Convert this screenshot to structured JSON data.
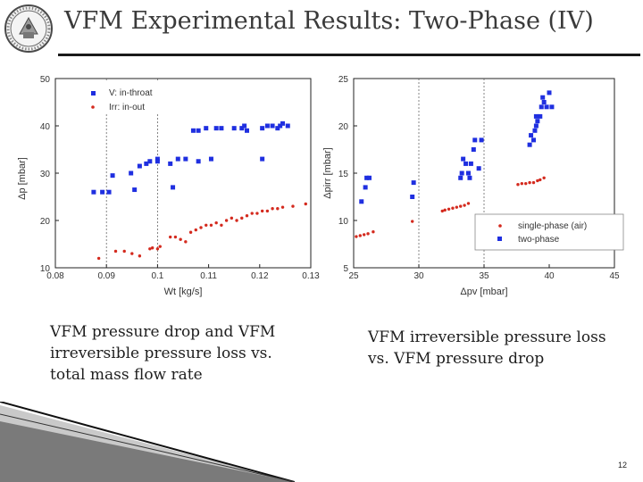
{
  "header": {
    "title": "VFM Experimental Results: Two-Phase (IV)"
  },
  "captions": {
    "left": "VFM pressure drop and VFM irreversible pressure loss vs. total mass flow rate",
    "right": "VFM irreversible pressure loss vs. VFM pressure drop"
  },
  "footer": {
    "page_number": "12"
  },
  "colors": {
    "blue_series": "#1f2fe0",
    "red_series": "#d42a1e",
    "frame": "#222222"
  },
  "chart_data": [
    {
      "type": "scatter",
      "title": "",
      "xlabel": "Wt [kg/s]",
      "ylabel": "Δp [mbar]",
      "xlim": [
        0.08,
        0.13
      ],
      "ylim": [
        10,
        50
      ],
      "xticks": [
        "0.08",
        "0.09",
        "0.1",
        "0.11",
        "0.12",
        "0.13"
      ],
      "yticks": [
        "10",
        "20",
        "30",
        "40",
        "50"
      ],
      "grid_x_dashed": [
        0.09,
        0.1
      ],
      "legend_position": "top-left",
      "series": [
        {
          "name": "V: in-throat",
          "marker": "square",
          "color": "#1f2fe0",
          "points": [
            [
              0.0875,
              26
            ],
            [
              0.0892,
              26
            ],
            [
              0.0905,
              26
            ],
            [
              0.0912,
              29.5
            ],
            [
              0.0948,
              30
            ],
            [
              0.0955,
              26.5
            ],
            [
              0.0965,
              31.5
            ],
            [
              0.0978,
              32
            ],
            [
              0.0985,
              32.5
            ],
            [
              0.1,
              33
            ],
            [
              0.1,
              32.5
            ],
            [
              0.1025,
              32
            ],
            [
              0.104,
              33
            ],
            [
              0.103,
              27
            ],
            [
              0.1055,
              33
            ],
            [
              0.107,
              39
            ],
            [
              0.108,
              39
            ],
            [
              0.108,
              32.5
            ],
            [
              0.1095,
              39.5
            ],
            [
              0.1105,
              33
            ],
            [
              0.1115,
              39.5
            ],
            [
              0.1125,
              39.5
            ],
            [
              0.115,
              39.5
            ],
            [
              0.1165,
              39.5
            ],
            [
              0.117,
              40
            ],
            [
              0.1175,
              39
            ],
            [
              0.1205,
              39.5
            ],
            [
              0.1215,
              40
            ],
            [
              0.1225,
              40
            ],
            [
              0.1235,
              39.5
            ],
            [
              0.124,
              40
            ],
            [
              0.1245,
              40.5
            ],
            [
              0.1205,
              33
            ],
            [
              0.1255,
              40
            ]
          ]
        },
        {
          "name": "Irr: in-out",
          "marker": "dot",
          "color": "#d42a1e",
          "points": [
            [
              0.0885,
              12
            ],
            [
              0.0918,
              13.5
            ],
            [
              0.0935,
              13.5
            ],
            [
              0.095,
              13
            ],
            [
              0.0965,
              12.5
            ],
            [
              0.0985,
              14
            ],
            [
              0.099,
              14.2
            ],
            [
              0.1,
              14
            ],
            [
              0.1005,
              14.5
            ],
            [
              0.1025,
              16.5
            ],
            [
              0.1035,
              16.5
            ],
            [
              0.1045,
              16
            ],
            [
              0.1055,
              15.5
            ],
            [
              0.1065,
              17.5
            ],
            [
              0.1075,
              18
            ],
            [
              0.1085,
              18.5
            ],
            [
              0.1095,
              19
            ],
            [
              0.1105,
              19
            ],
            [
              0.1115,
              19.5
            ],
            [
              0.1125,
              19
            ],
            [
              0.1135,
              20
            ],
            [
              0.1145,
              20.5
            ],
            [
              0.1155,
              20
            ],
            [
              0.1165,
              20.5
            ],
            [
              0.1175,
              21
            ],
            [
              0.1185,
              21.5
            ],
            [
              0.1195,
              21.5
            ],
            [
              0.1205,
              22
            ],
            [
              0.1215,
              22
            ],
            [
              0.1225,
              22.5
            ],
            [
              0.1235,
              22.5
            ],
            [
              0.1245,
              22.8
            ],
            [
              0.1265,
              23
            ],
            [
              0.129,
              23.5
            ]
          ]
        }
      ]
    },
    {
      "type": "scatter",
      "title": "",
      "xlabel": "Δpv [mbar]",
      "ylabel": "Δpirr [mbar]",
      "xlim": [
        25,
        45
      ],
      "ylim": [
        5,
        25
      ],
      "xticks": [
        "25",
        "30",
        "35",
        "40",
        "45"
      ],
      "yticks": [
        "5",
        "10",
        "15",
        "20",
        "25"
      ],
      "grid_x_dashed": [
        30,
        35
      ],
      "legend_position": "bottom-right",
      "series": [
        {
          "name": "single-phase (air)",
          "marker": "dot",
          "color": "#d42a1e",
          "points": [
            [
              25.2,
              8.3
            ],
            [
              25.5,
              8.4
            ],
            [
              25.8,
              8.5
            ],
            [
              26.1,
              8.6
            ],
            [
              26.5,
              8.8
            ],
            [
              29.5,
              9.9
            ],
            [
              31.8,
              11
            ],
            [
              32,
              11.1
            ],
            [
              32.3,
              11.2
            ],
            [
              32.6,
              11.3
            ],
            [
              32.9,
              11.4
            ],
            [
              33.2,
              11.5
            ],
            [
              33.5,
              11.6
            ],
            [
              33.8,
              11.8
            ],
            [
              37.6,
              13.8
            ],
            [
              37.9,
              13.9
            ],
            [
              38.2,
              13.9
            ],
            [
              38.5,
              14.0
            ],
            [
              38.8,
              14.0
            ],
            [
              39.1,
              14.2
            ],
            [
              39.3,
              14.3
            ],
            [
              39.6,
              14.5
            ]
          ]
        },
        {
          "name": "two-phase",
          "marker": "square",
          "color": "#1f2fe0",
          "points": [
            [
              25.6,
              12
            ],
            [
              25.9,
              13.5
            ],
            [
              26,
              14.5
            ],
            [
              26.2,
              14.5
            ],
            [
              29.5,
              12.5
            ],
            [
              29.6,
              14
            ],
            [
              33.2,
              14.5
            ],
            [
              33.3,
              15
            ],
            [
              33.4,
              16.5
            ],
            [
              33.6,
              16
            ],
            [
              33.8,
              15
            ],
            [
              33.9,
              14.5
            ],
            [
              34,
              16
            ],
            [
              34.2,
              17.5
            ],
            [
              34.3,
              18.5
            ],
            [
              34.6,
              15.5
            ],
            [
              34.8,
              18.5
            ],
            [
              38.5,
              18
            ],
            [
              38.6,
              19
            ],
            [
              38.8,
              18.5
            ],
            [
              38.9,
              19.5
            ],
            [
              39,
              20
            ],
            [
              39,
              21
            ],
            [
              39.1,
              20.5
            ],
            [
              39.3,
              21
            ],
            [
              39.4,
              22
            ],
            [
              39.5,
              23
            ],
            [
              39.6,
              22.5
            ],
            [
              39.8,
              22
            ],
            [
              40,
              23.5
            ],
            [
              40.2,
              22
            ]
          ]
        }
      ]
    }
  ]
}
